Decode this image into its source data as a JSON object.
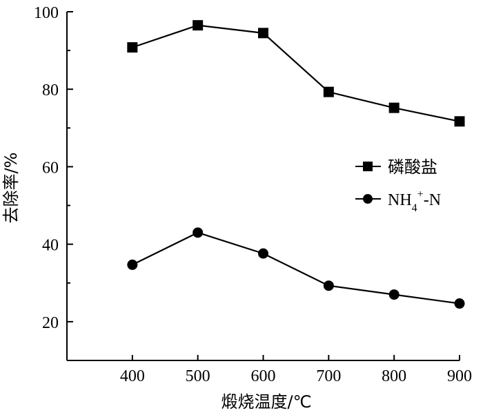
{
  "chart_data": {
    "type": "line",
    "xlabel": "煅烧温度/℃",
    "ylabel": "去除率/%",
    "x": [
      400,
      500,
      600,
      700,
      800,
      900
    ],
    "xlim": [
      300,
      900
    ],
    "ylim": [
      10,
      100
    ],
    "xticks": [
      "400",
      "500",
      "600",
      "700",
      "800",
      "900"
    ],
    "yticks": [
      "20",
      "40",
      "60",
      "80",
      "100"
    ],
    "ytick_values": [
      20,
      40,
      60,
      80,
      100
    ],
    "grid": false,
    "legend_position": "right",
    "series": [
      {
        "name": "磷酸盐",
        "marker": "square",
        "values": [
          90.8,
          96.5,
          94.5,
          79.3,
          75.2,
          71.7
        ]
      },
      {
        "name": "NH4+-N",
        "marker": "circle",
        "values": [
          34.7,
          43.0,
          37.6,
          29.3,
          27.0,
          24.7
        ]
      }
    ],
    "legend": {
      "s1_label": "磷酸盐",
      "s2_main": "NH",
      "s2_sub": "4",
      "s2_sup": "+",
      "s2_tail": "-N"
    }
  }
}
